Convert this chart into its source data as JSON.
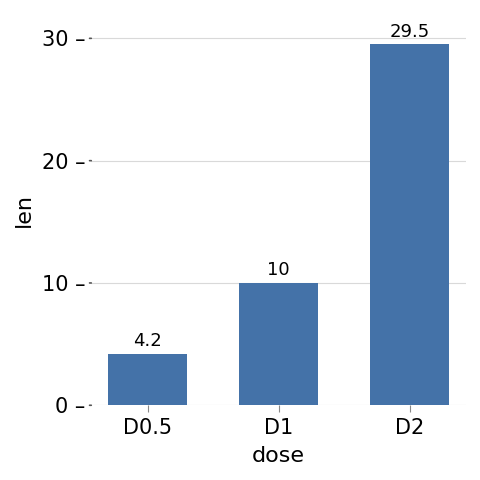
{
  "categories": [
    "D0.5",
    "D1",
    "D2"
  ],
  "values": [
    4.2,
    10,
    29.5
  ],
  "bar_labels": [
    "4.2",
    "10",
    "29.5"
  ],
  "bar_color": "#4472a8",
  "xlabel": "dose",
  "ylabel": "len",
  "yticks": [
    0,
    10,
    20,
    30
  ],
  "ylim": [
    0,
    32
  ],
  "bg_color": "#ffffff",
  "grid_color": "#d9d9d9",
  "label_fontsize": 16,
  "tick_fontsize": 15,
  "bar_label_fontsize": 13
}
